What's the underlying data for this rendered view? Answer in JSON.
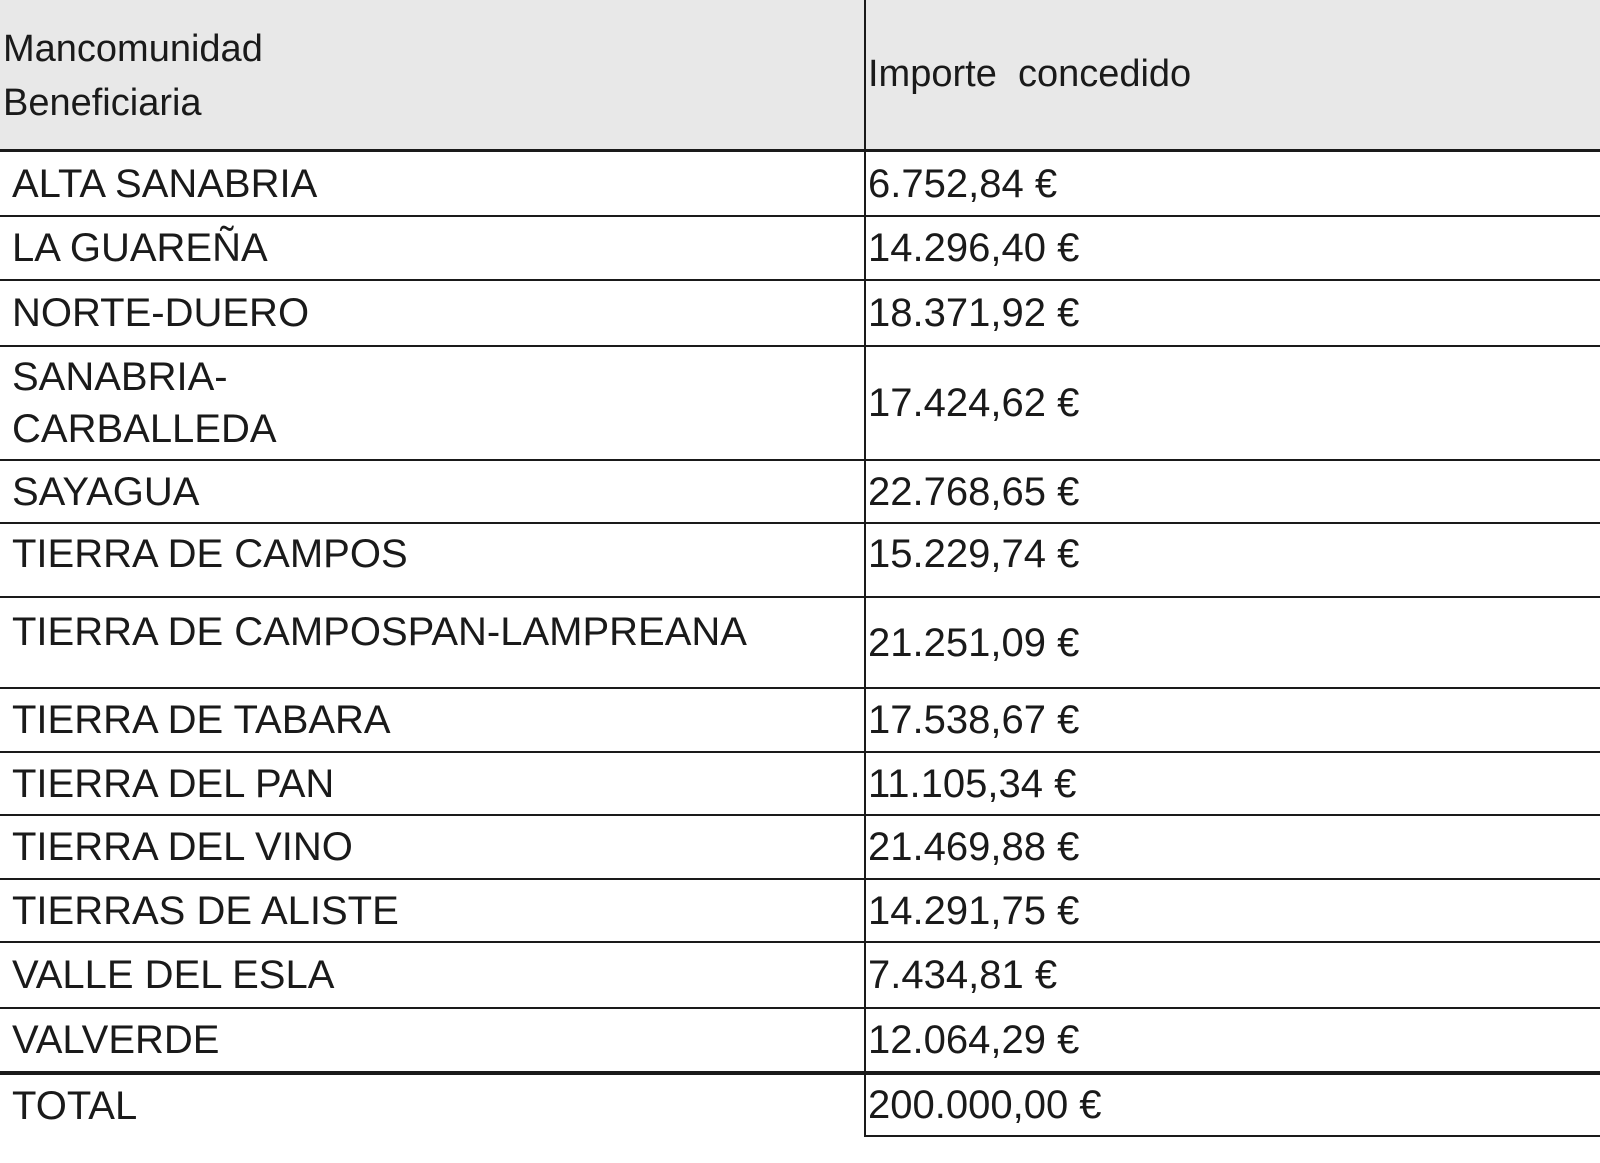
{
  "table": {
    "header": {
      "col1_line1": "Mancomunidad",
      "col1_line2": "Beneficiaria",
      "col2": "Importe  concedido"
    },
    "rows": [
      {
        "name": "ALTA SANABRIA",
        "amount": "6.752,84 €"
      },
      {
        "name": "LA GUAREÑA",
        "amount": "14.296,40 €"
      },
      {
        "name": "NORTE-DUERO",
        "amount": "18.371,92 €"
      },
      {
        "name_line1": "SANABRIA-",
        "name_line2": "CARBALLEDA",
        "amount": "17.424,62 €"
      },
      {
        "name": "SAYAGUA",
        "amount": "22.768,65 €"
      },
      {
        "name": "TIERRA DE CAMPOS",
        "amount": "15.229,74 €"
      },
      {
        "name": "TIERRA DE CAMPOSPAN-LAMPREANA",
        "amount": "21.251,09 €"
      },
      {
        "name": "TIERRA DE TABARA",
        "amount": "17.538,67 €"
      },
      {
        "name": "TIERRA DEL PAN",
        "amount": "11.105,34 €"
      },
      {
        "name": "TIERRA DEL VINO",
        "amount": "21.469,88 €"
      },
      {
        "name": "TIERRAS DE ALISTE",
        "amount": "14.291,75 €"
      },
      {
        "name": "VALLE DEL ESLA",
        "amount": "7.434,81 €"
      },
      {
        "name": "VALVERDE",
        "amount": "12.064,29 €"
      }
    ],
    "total": {
      "label": "TOTAL",
      "amount": "200.000,00 €"
    }
  }
}
